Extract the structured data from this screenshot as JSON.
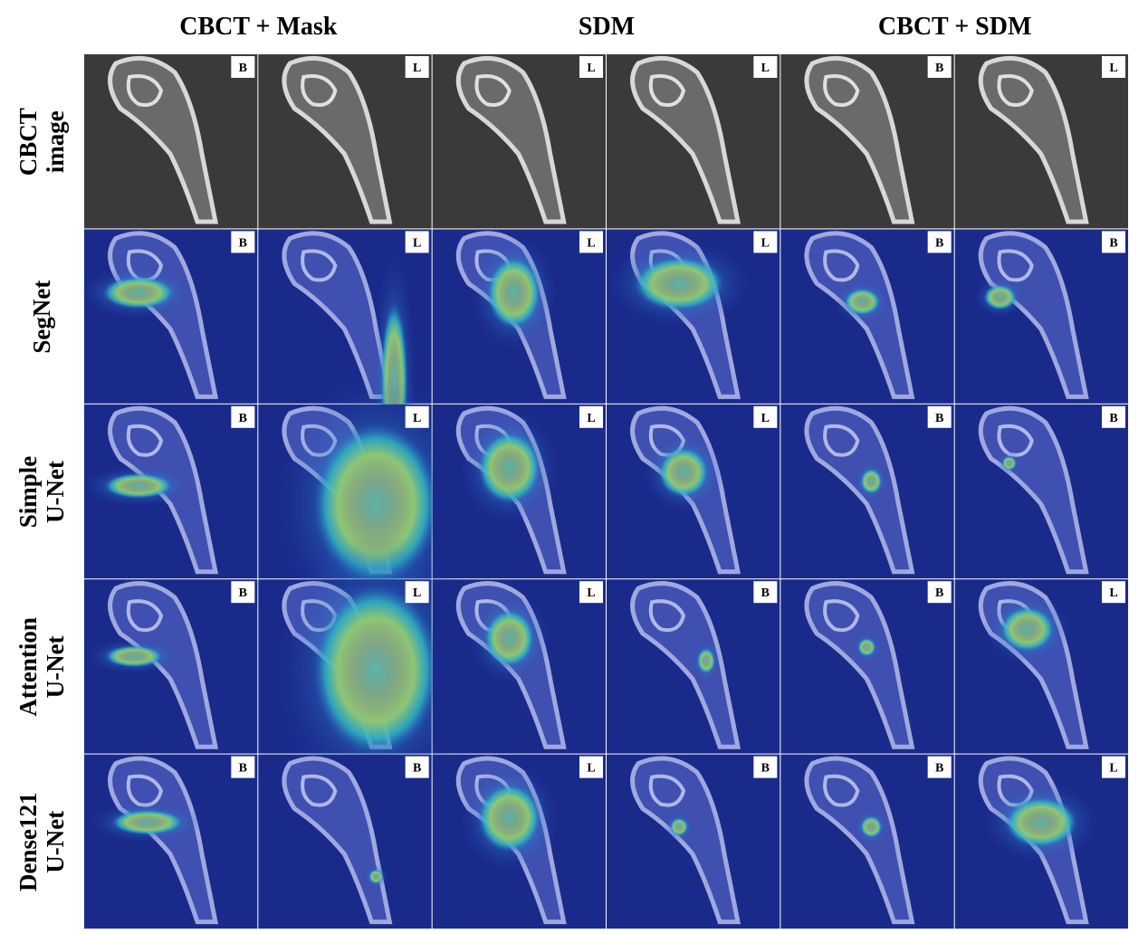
{
  "column_headers": [
    "CBCT + Mask",
    "SDM",
    "CBCT + SDM"
  ],
  "rows": [
    {
      "label": [
        "CBCT",
        "image"
      ],
      "badges": [
        "B",
        "L",
        "L",
        "L",
        "B",
        "L"
      ]
    },
    {
      "label": [
        "SegNet"
      ],
      "badges": [
        "B",
        "L",
        "L",
        "L",
        "B",
        "B"
      ]
    },
    {
      "label": [
        "Simple",
        "U-Net"
      ],
      "badges": [
        "B",
        "L",
        "L",
        "L",
        "B",
        "B"
      ]
    },
    {
      "label": [
        "Attention",
        "U-Net"
      ],
      "badges": [
        "B",
        "L",
        "L",
        "B",
        "B",
        "L"
      ]
    },
    {
      "label": [
        "Dense121",
        "U-Net"
      ],
      "badges": [
        "B",
        "B",
        "L",
        "B",
        "B",
        "L"
      ]
    }
  ]
}
